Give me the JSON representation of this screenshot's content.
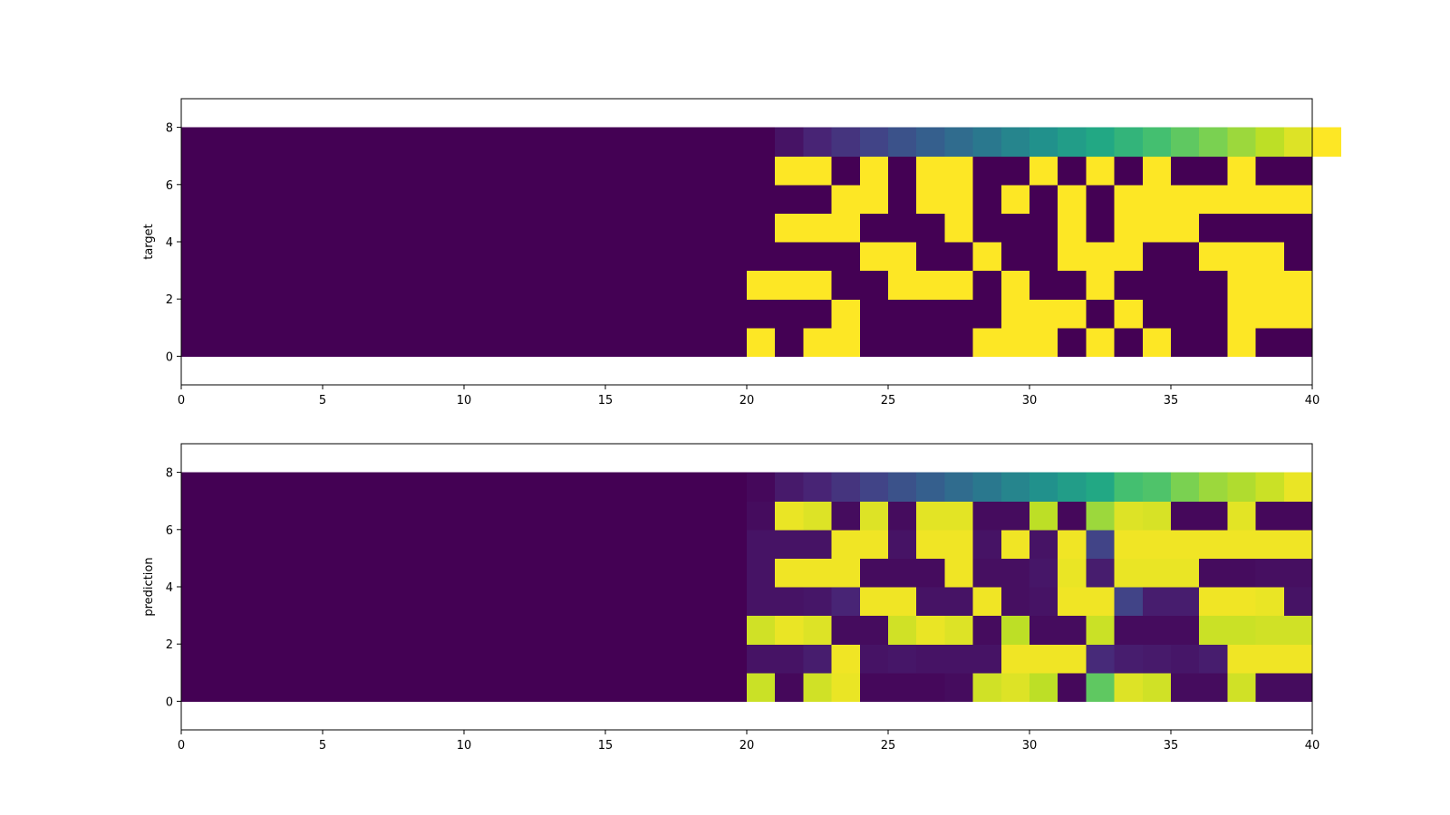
{
  "chart_data": [
    {
      "type": "heatmap",
      "ylabel": "target",
      "xlabel": "",
      "title": "",
      "colormap": "viridis",
      "vmin": 0,
      "vmax": 1,
      "xlim": [
        0,
        40
      ],
      "ylim": [
        -1,
        9
      ],
      "xticks": [
        0,
        5,
        10,
        15,
        20,
        25,
        30,
        35,
        40
      ],
      "yticks": [
        0,
        2,
        4,
        6,
        8
      ],
      "grid": false,
      "row_order": "bottom-to-top, row 0 spans y 0-1",
      "rows": [
        [
          0,
          0,
          0,
          0,
          0,
          0,
          0,
          0,
          0,
          0,
          0,
          0,
          0,
          0,
          0,
          0,
          0,
          0,
          0,
          0,
          1,
          0,
          1,
          1,
          0,
          0,
          0,
          0,
          1,
          1,
          1,
          0,
          1,
          0,
          1,
          0,
          0,
          1,
          0,
          0
        ],
        [
          0,
          0,
          0,
          0,
          0,
          0,
          0,
          0,
          0,
          0,
          0,
          0,
          0,
          0,
          0,
          0,
          0,
          0,
          0,
          0,
          0,
          0,
          0,
          1,
          0,
          0,
          0,
          0,
          0,
          1,
          1,
          1,
          0,
          1,
          0,
          0,
          0,
          1,
          1,
          1
        ],
        [
          0,
          0,
          0,
          0,
          0,
          0,
          0,
          0,
          0,
          0,
          0,
          0,
          0,
          0,
          0,
          0,
          0,
          0,
          0,
          0,
          1,
          1,
          1,
          0,
          0,
          1,
          1,
          1,
          0,
          1,
          0,
          0,
          1,
          0,
          0,
          0,
          0,
          1,
          1,
          1
        ],
        [
          0,
          0,
          0,
          0,
          0,
          0,
          0,
          0,
          0,
          0,
          0,
          0,
          0,
          0,
          0,
          0,
          0,
          0,
          0,
          0,
          0,
          0,
          0,
          0,
          1,
          1,
          0,
          0,
          1,
          0,
          0,
          1,
          1,
          1,
          0,
          0,
          1,
          1,
          1,
          0
        ],
        [
          0,
          0,
          0,
          0,
          0,
          0,
          0,
          0,
          0,
          0,
          0,
          0,
          0,
          0,
          0,
          0,
          0,
          0,
          0,
          0,
          0,
          1,
          1,
          1,
          0,
          0,
          0,
          1,
          0,
          0,
          0,
          1,
          0,
          1,
          1,
          1,
          0,
          0,
          0,
          0
        ],
        [
          0,
          0,
          0,
          0,
          0,
          0,
          0,
          0,
          0,
          0,
          0,
          0,
          0,
          0,
          0,
          0,
          0,
          0,
          0,
          0,
          0,
          0,
          0,
          1,
          1,
          0,
          1,
          1,
          0,
          1,
          0,
          1,
          0,
          1,
          1,
          1,
          1,
          1,
          1,
          1
        ],
        [
          0,
          0,
          0,
          0,
          0,
          0,
          0,
          0,
          0,
          0,
          0,
          0,
          0,
          0,
          0,
          0,
          0,
          0,
          0,
          0,
          0,
          1,
          1,
          0,
          1,
          0,
          1,
          1,
          0,
          0,
          1,
          0,
          1,
          0,
          1,
          0,
          0,
          1,
          0,
          0
        ],
        [
          0,
          0,
          0,
          0,
          0,
          0,
          0,
          0,
          0,
          0,
          0,
          0,
          0,
          0,
          0,
          0,
          0,
          0,
          0,
          0,
          0,
          0.05,
          0.1,
          0.15,
          0.2,
          0.25,
          0.3,
          0.35,
          0.4,
          0.45,
          0.5,
          0.55,
          0.6,
          0.65,
          0.7,
          0.75,
          0.8,
          0.85,
          0.9,
          0.95,
          1
        ]
      ]
    },
    {
      "type": "heatmap",
      "ylabel": "prediction",
      "xlabel": "",
      "title": "",
      "colormap": "viridis",
      "vmin": 0,
      "vmax": 1,
      "xlim": [
        0,
        40
      ],
      "ylim": [
        -1,
        9
      ],
      "xticks": [
        0,
        5,
        10,
        15,
        20,
        25,
        30,
        35,
        40
      ],
      "yticks": [
        0,
        2,
        4,
        6,
        8
      ],
      "grid": false,
      "row_order": "bottom-to-top, row 0 spans y 0-1",
      "rows": [
        [
          0,
          0,
          0,
          0,
          0,
          0,
          0,
          0,
          0,
          0,
          0,
          0,
          0,
          0,
          0,
          0,
          0,
          0,
          0,
          0,
          0.92,
          0.02,
          0.93,
          0.97,
          0.02,
          0.02,
          0.02,
          0.03,
          0.93,
          0.95,
          0.9,
          0.02,
          0.75,
          0.95,
          0.93,
          0.03,
          0.03,
          0.93,
          0.03,
          0.03
        ],
        [
          0,
          0,
          0,
          0,
          0,
          0,
          0,
          0,
          0,
          0,
          0,
          0,
          0,
          0,
          0,
          0,
          0,
          0,
          0,
          0,
          0.05,
          0.05,
          0.08,
          0.98,
          0.05,
          0.06,
          0.05,
          0.05,
          0.05,
          0.98,
          0.98,
          0.98,
          0.12,
          0.08,
          0.07,
          0.06,
          0.08,
          0.98,
          0.98,
          0.98
        ],
        [
          0,
          0,
          0,
          0,
          0,
          0,
          0,
          0,
          0,
          0,
          0,
          0,
          0,
          0,
          0,
          0,
          0,
          0,
          0,
          0,
          0.93,
          0.97,
          0.95,
          0.03,
          0.03,
          0.93,
          0.97,
          0.95,
          0.03,
          0.9,
          0.03,
          0.03,
          0.92,
          0.03,
          0.03,
          0.03,
          0.92,
          0.92,
          0.93,
          0.93
        ],
        [
          0,
          0,
          0,
          0,
          0,
          0,
          0,
          0,
          0,
          0,
          0,
          0,
          0,
          0,
          0,
          0,
          0,
          0,
          0,
          0,
          0.05,
          0.05,
          0.06,
          0.1,
          0.98,
          0.98,
          0.05,
          0.05,
          0.98,
          0.04,
          0.05,
          0.98,
          0.98,
          0.2,
          0.08,
          0.08,
          0.98,
          0.98,
          0.97,
          0.05
        ],
        [
          0,
          0,
          0,
          0,
          0,
          0,
          0,
          0,
          0,
          0,
          0,
          0,
          0,
          0,
          0,
          0,
          0,
          0,
          0,
          0,
          0.05,
          0.98,
          0.98,
          0.98,
          0.03,
          0.03,
          0.03,
          0.98,
          0.04,
          0.04,
          0.06,
          0.97,
          0.08,
          0.97,
          0.97,
          0.97,
          0.03,
          0.03,
          0.04,
          0.04
        ],
        [
          0,
          0,
          0,
          0,
          0,
          0,
          0,
          0,
          0,
          0,
          0,
          0,
          0,
          0,
          0,
          0,
          0,
          0,
          0,
          0,
          0.05,
          0.05,
          0.05,
          0.98,
          0.98,
          0.05,
          0.98,
          0.98,
          0.05,
          0.98,
          0.05,
          0.98,
          0.2,
          0.98,
          0.98,
          0.98,
          0.98,
          0.98,
          0.98,
          0.98
        ],
        [
          0,
          0,
          0,
          0,
          0,
          0,
          0,
          0,
          0,
          0,
          0,
          0,
          0,
          0,
          0,
          0,
          0,
          0,
          0,
          0,
          0.03,
          0.97,
          0.95,
          0.03,
          0.95,
          0.03,
          0.96,
          0.96,
          0.03,
          0.03,
          0.9,
          0.02,
          0.85,
          0.95,
          0.94,
          0.02,
          0.02,
          0.96,
          0.02,
          0.02
        ],
        [
          0,
          0,
          0,
          0,
          0,
          0,
          0,
          0,
          0,
          0,
          0,
          0,
          0,
          0,
          0,
          0,
          0,
          0,
          0,
          0,
          0.02,
          0.07,
          0.1,
          0.15,
          0.2,
          0.25,
          0.3,
          0.35,
          0.4,
          0.45,
          0.5,
          0.55,
          0.6,
          0.7,
          0.72,
          0.8,
          0.85,
          0.88,
          0.92,
          0.97
        ]
      ]
    }
  ]
}
